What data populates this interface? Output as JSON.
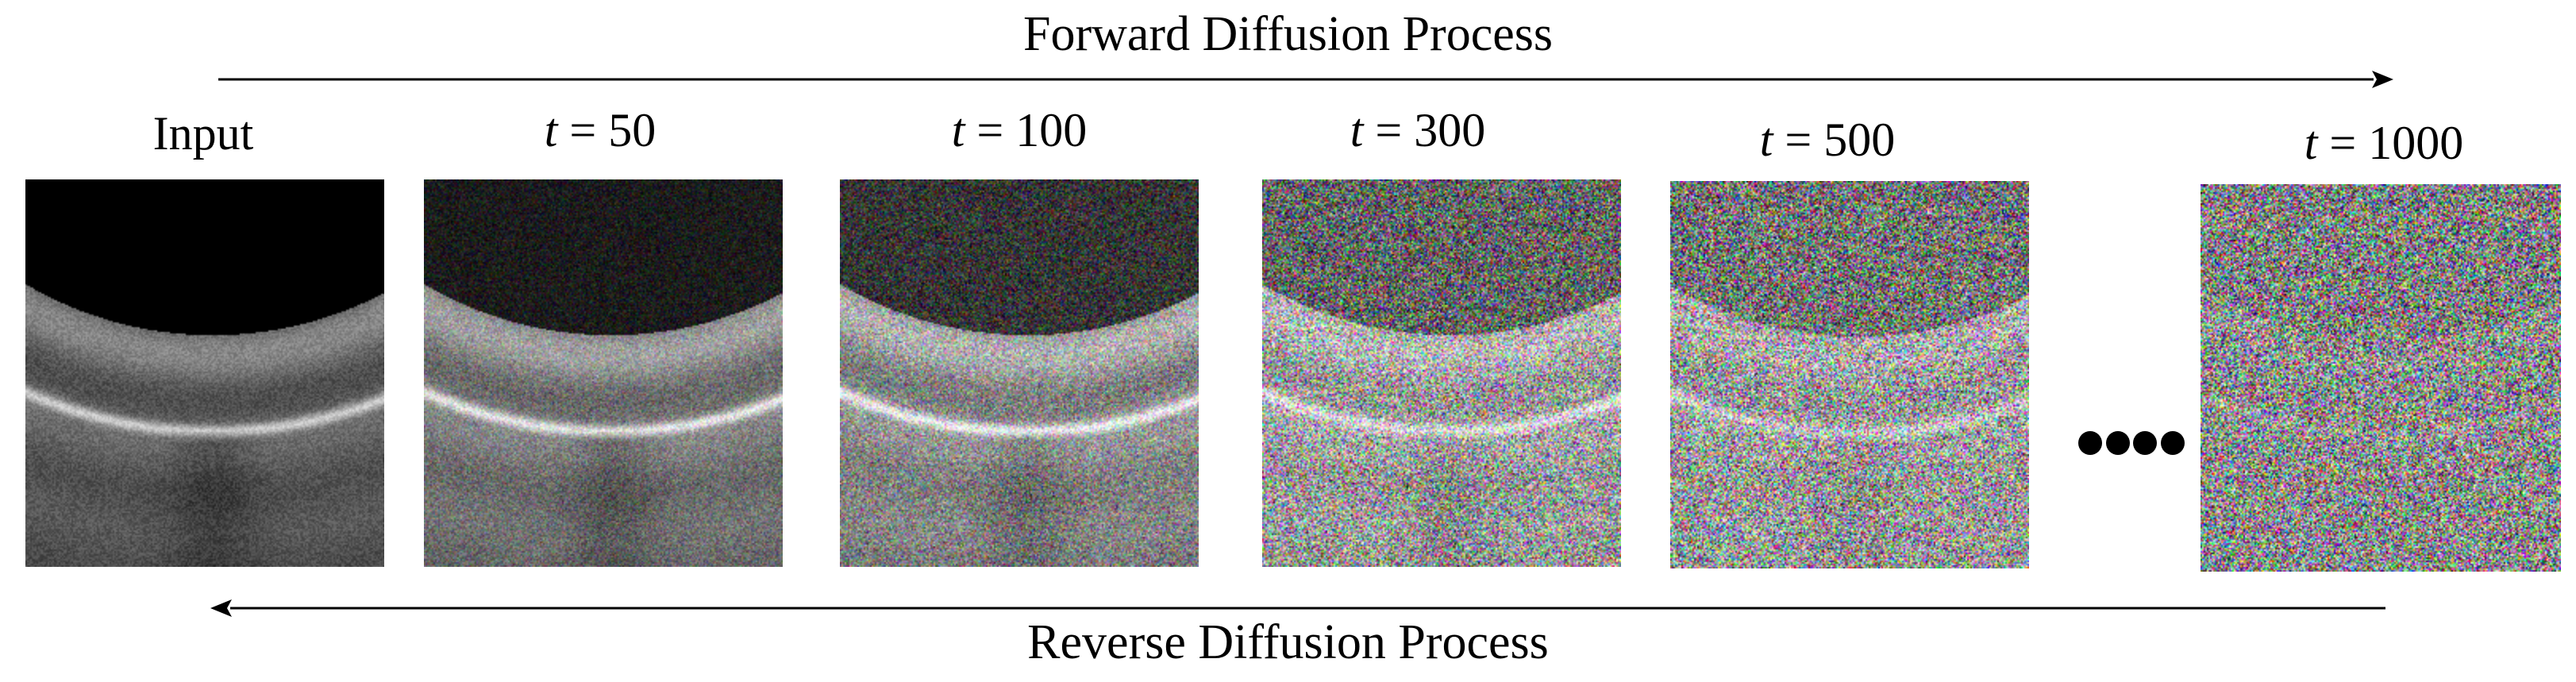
{
  "forward_title": "Forward Diffusion Process",
  "reverse_title": "Reverse Diffusion Process",
  "frames": [
    {
      "label": "Input",
      "var": "",
      "value": "",
      "noise_level": 0
    },
    {
      "label": "",
      "var": "t",
      "value": " = 50",
      "noise_level": 0.22
    },
    {
      "label": "",
      "var": "t",
      "value": " = 100",
      "noise_level": 0.42
    },
    {
      "label": "",
      "var": "t",
      "value": " = 300",
      "noise_level": 0.78
    },
    {
      "label": "",
      "var": "t",
      "value": " = 500",
      "noise_level": 0.9
    },
    {
      "label": "",
      "var": "t",
      "value": " = 1000",
      "noise_level": 1
    }
  ],
  "colors": {
    "arrow": "#000000",
    "background": "#ffffff"
  }
}
